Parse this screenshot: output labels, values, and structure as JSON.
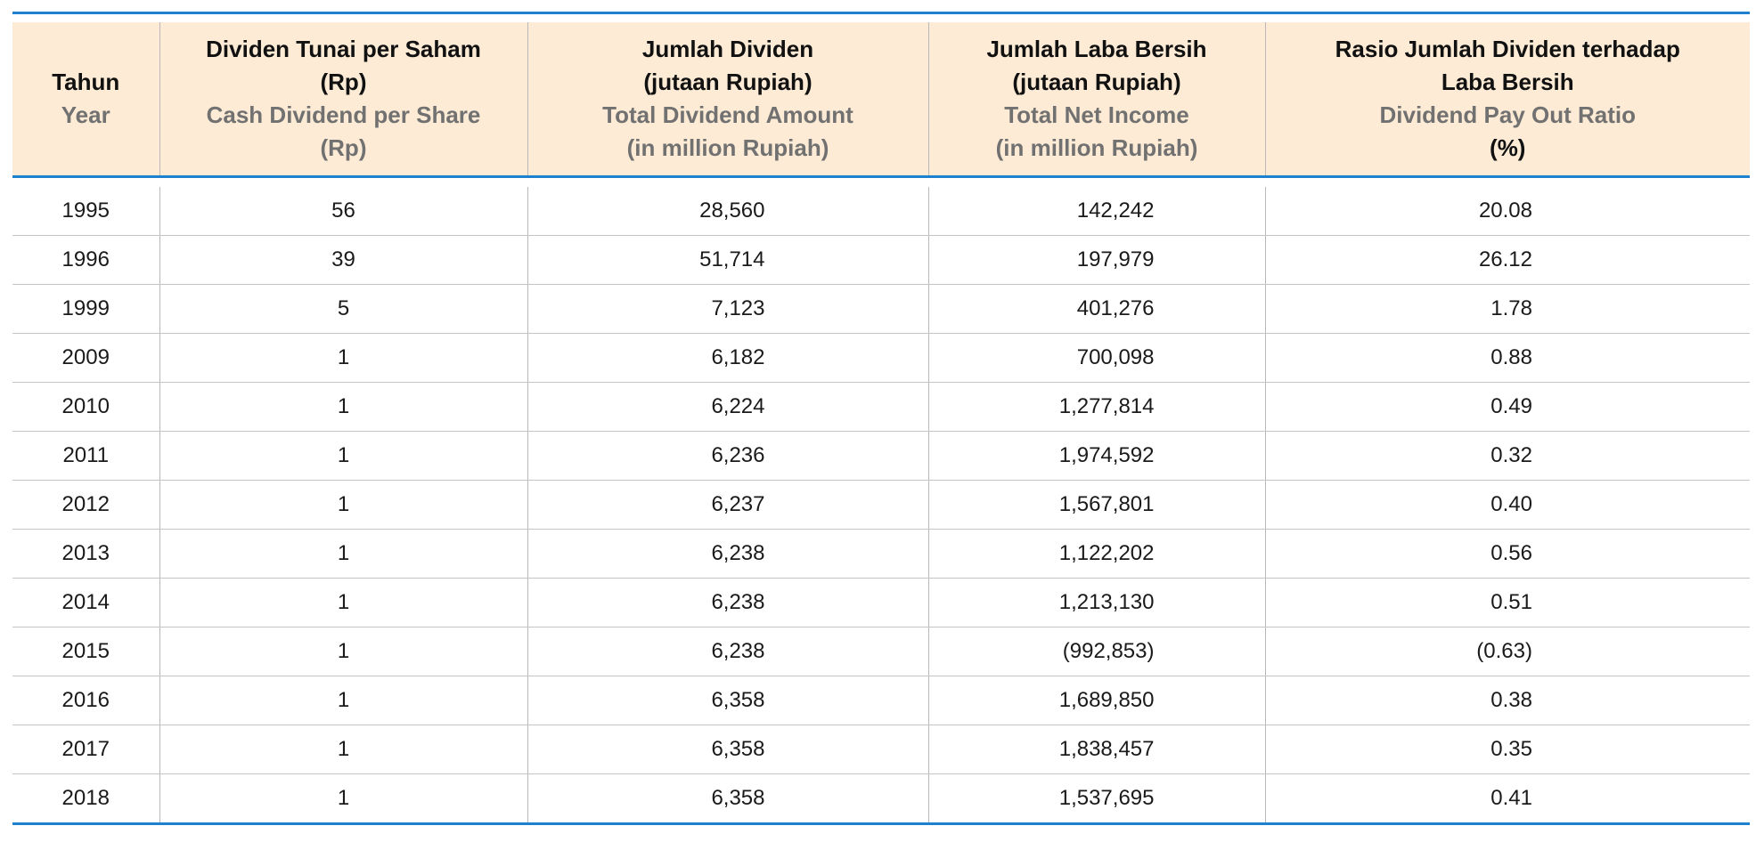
{
  "colors": {
    "accent": "#1f80d0",
    "header_bg": "#fdebd5",
    "english_text": "#717171"
  },
  "headers": [
    {
      "id": [
        "Tahun"
      ],
      "en": [
        "Year"
      ]
    },
    {
      "id": [
        "Dividen Tunai per Saham",
        "(Rp)"
      ],
      "en": [
        "Cash Dividend per Share",
        "(Rp)"
      ]
    },
    {
      "id": [
        "Jumlah Dividen",
        "(jutaan Rupiah)"
      ],
      "en": [
        "Total Dividend Amount",
        "(in million Rupiah)"
      ]
    },
    {
      "id": [
        "Jumlah Laba Bersih",
        "(jutaan Rupiah)"
      ],
      "en": [
        "Total Net Income",
        "(in million Rupiah)"
      ]
    },
    {
      "id": [
        "Rasio Jumlah Dividen terhadap",
        "Laba Bersih"
      ],
      "en": [
        "Dividend Pay Out Ratio"
      ],
      "extra": "(%)"
    }
  ],
  "rows": [
    [
      "1995",
      "56",
      "28,560",
      "142,242",
      "20.08"
    ],
    [
      "1996",
      "39",
      "51,714",
      "197,979",
      "26.12"
    ],
    [
      "1999",
      "5",
      "7,123",
      "401,276",
      "1.78"
    ],
    [
      "2009",
      "1",
      "6,182",
      "700,098",
      "0.88"
    ],
    [
      "2010",
      "1",
      "6,224",
      "1,277,814",
      "0.49"
    ],
    [
      "2011",
      "1",
      "6,236",
      "1,974,592",
      "0.32"
    ],
    [
      "2012",
      "1",
      "6,237",
      "1,567,801",
      "0.40"
    ],
    [
      "2013",
      "1",
      "6,238",
      "1,122,202",
      "0.56"
    ],
    [
      "2014",
      "1",
      "6,238",
      "1,213,130",
      "0.51"
    ],
    [
      "2015",
      "1",
      "6,238",
      "(992,853)",
      "(0.63)"
    ],
    [
      "2016",
      "1",
      "6,358",
      "1,689,850",
      "0.38"
    ],
    [
      "2017",
      "1",
      "6,358",
      "1,838,457",
      "0.35"
    ],
    [
      "2018",
      "1",
      "6,358",
      "1,537,695",
      "0.41"
    ]
  ]
}
